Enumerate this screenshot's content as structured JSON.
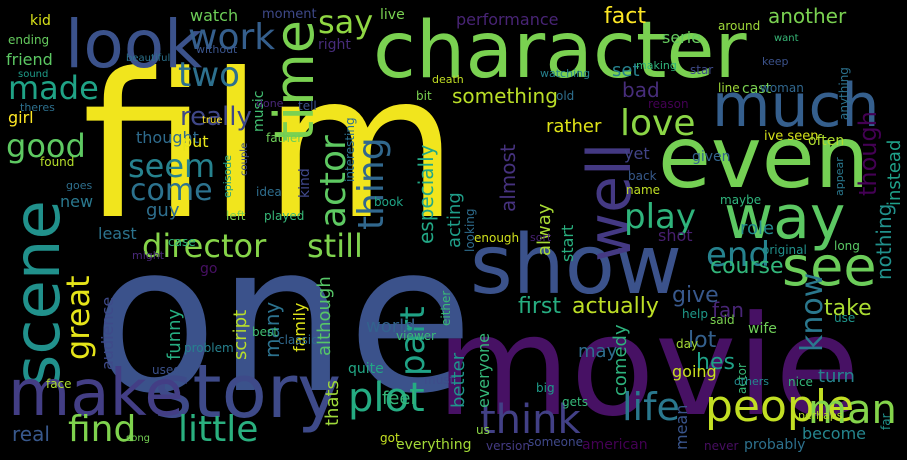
{
  "words": [
    {
      "t": "film",
      "c": "#f1e51d"
    },
    {
      "t": "one",
      "c": "#3b528b"
    },
    {
      "t": "movie",
      "c": "#471164"
    },
    {
      "t": "character",
      "c": "#7ad151"
    },
    {
      "t": "even",
      "c": "#75d054"
    },
    {
      "t": "show",
      "c": "#3b528b"
    },
    {
      "t": "scene",
      "c": "#21918c"
    },
    {
      "t": "story",
      "c": "#3e4a89"
    },
    {
      "t": "make",
      "c": "#433e85"
    },
    {
      "t": "look",
      "c": "#3b528b"
    },
    {
      "t": "time",
      "c": "#7ad151"
    },
    {
      "t": "much",
      "c": "#355f8d"
    },
    {
      "t": "way",
      "c": "#5cc863"
    },
    {
      "t": "see",
      "c": "#6ccd5a"
    },
    {
      "t": "well",
      "c": "#443983"
    },
    {
      "t": "director",
      "c": "#86d549"
    },
    {
      "t": "still",
      "c": "#7fd34e"
    },
    {
      "t": "people",
      "c": "#c2df23"
    },
    {
      "t": "life",
      "c": "#2a788e"
    },
    {
      "t": "plot",
      "c": "#25ac82"
    },
    {
      "t": "think",
      "c": "#424086"
    },
    {
      "t": "little",
      "c": "#2ab07f"
    },
    {
      "t": "find",
      "c": "#7fd34e"
    },
    {
      "t": "man",
      "c": "#84d44b"
    },
    {
      "t": "good",
      "c": "#5ec962"
    },
    {
      "t": "made",
      "c": "#20a386"
    },
    {
      "t": "great",
      "c": "#e5e419"
    },
    {
      "t": "seem",
      "c": "#26828e"
    },
    {
      "t": "come",
      "c": "#2c728e"
    },
    {
      "t": "work",
      "c": "#355f8d"
    },
    {
      "t": "two",
      "c": "#2d708e"
    },
    {
      "t": "say",
      "c": "#90d743"
    },
    {
      "t": "actor",
      "c": "#5ec962"
    },
    {
      "t": "thing",
      "c": "#31688e"
    },
    {
      "t": "part",
      "c": "#20a386"
    },
    {
      "t": "love",
      "c": "#8bd646"
    },
    {
      "t": "play",
      "c": "#2fb47c"
    },
    {
      "t": "end",
      "c": "#26828e"
    },
    {
      "t": "know",
      "c": "#2a788e"
    },
    {
      "t": "really",
      "c": "#3f4788"
    },
    {
      "t": "watch",
      "c": "#6ece58"
    },
    {
      "t": "fact",
      "c": "#fde725"
    },
    {
      "t": "another",
      "c": "#7ad151"
    },
    {
      "t": "though",
      "c": "#440154"
    },
    {
      "t": "instead",
      "c": "#1fa088"
    },
    {
      "t": "nothing",
      "c": "#21918c"
    },
    {
      "t": "first",
      "c": "#27ad81"
    },
    {
      "t": "actually",
      "c": "#bddf26"
    },
    {
      "t": "give",
      "c": "#38588c"
    },
    {
      "t": "take",
      "c": "#aadc32"
    },
    {
      "t": "fan",
      "c": "#482576"
    },
    {
      "t": "lot",
      "c": "#34608d"
    },
    {
      "t": "hes",
      "c": "#1fa187"
    },
    {
      "t": "role",
      "c": "#23898e"
    },
    {
      "t": "course",
      "c": "#32b67a"
    },
    {
      "t": "shot",
      "c": "#481f70"
    },
    {
      "t": "going",
      "c": "#cae11f"
    },
    {
      "t": "may",
      "c": "#2e6e8e"
    },
    {
      "t": "comedy",
      "c": "#2db27d"
    },
    {
      "t": "turn",
      "c": "#26828e"
    },
    {
      "t": "become",
      "c": "#25858e"
    },
    {
      "t": "mean",
      "c": "#39558c"
    },
    {
      "t": "world",
      "c": "#33628d"
    },
    {
      "t": "many",
      "c": "#2c728e"
    },
    {
      "t": "family",
      "c": "#dde318"
    },
    {
      "t": "funny",
      "c": "#26ad81"
    },
    {
      "t": "script",
      "c": "#b8de29"
    },
    {
      "t": "audience",
      "c": "#3e4a89"
    },
    {
      "t": "although",
      "c": "#56c667"
    },
    {
      "t": "feel",
      "c": "#35b779"
    },
    {
      "t": "thats",
      "c": "#9fda3a"
    },
    {
      "t": "real",
      "c": "#38588c"
    },
    {
      "t": "better",
      "c": "#1f968b"
    },
    {
      "t": "everyone",
      "c": "#35b779"
    },
    {
      "t": "acting",
      "c": "#1f9e89"
    },
    {
      "t": "especially",
      "c": "#22a785"
    },
    {
      "t": "almost",
      "c": "#46327e"
    },
    {
      "t": "alway",
      "c": "#a8db34"
    },
    {
      "t": "start",
      "c": "#29af7f"
    },
    {
      "t": "something",
      "c": "#bade28"
    },
    {
      "t": "rather",
      "c": "#dfe318"
    },
    {
      "t": "set",
      "c": "#26828e"
    },
    {
      "t": "bad",
      "c": "#472d7b"
    },
    {
      "t": "yet",
      "c": "#414487"
    },
    {
      "t": "serie",
      "c": "#65cb5e"
    },
    {
      "t": "performance",
      "c": "#482475"
    },
    {
      "t": "right",
      "c": "#472c7a"
    },
    {
      "t": "live",
      "c": "#7ad151"
    },
    {
      "t": "moment",
      "c": "#3e4989"
    },
    {
      "t": "music",
      "c": "#42be71"
    },
    {
      "t": "thought",
      "c": "#2f6c8e"
    },
    {
      "t": "put",
      "c": "#e7e419"
    },
    {
      "t": "guy",
      "c": "#2e6f8e"
    },
    {
      "t": "kind",
      "c": "#3f4889"
    },
    {
      "t": "new",
      "c": "#2a788e"
    },
    {
      "t": "least",
      "c": "#2c738e"
    },
    {
      "t": "girl",
      "c": "#fde725"
    },
    {
      "t": "friend",
      "c": "#5cc863"
    },
    {
      "t": "kid",
      "c": "#d8e219"
    },
    {
      "t": "go",
      "c": "#471063"
    },
    {
      "t": "cast",
      "c": "#7ad151"
    },
    {
      "t": "line",
      "c": "#a0da39"
    },
    {
      "t": "ive seen",
      "c": "#d5e21a"
    },
    {
      "t": "given",
      "c": "#33638d"
    },
    {
      "t": "often",
      "c": "#b0dd2f"
    },
    {
      "t": "woman",
      "c": "#31678e"
    },
    {
      "t": "reason",
      "c": "#440154"
    },
    {
      "t": "original",
      "c": "#21918c"
    },
    {
      "t": "maybe",
      "c": "#2fb47c"
    },
    {
      "t": "long",
      "c": "#5ac864"
    },
    {
      "t": "use",
      "c": "#1f958b"
    },
    {
      "t": "said",
      "c": "#7ad151"
    },
    {
      "t": "help",
      "c": "#1f9a8a"
    },
    {
      "t": "wife",
      "c": "#6ece58"
    },
    {
      "t": "day",
      "c": "#a5db36"
    },
    {
      "t": "actor",
      "c": "#37b878"
    },
    {
      "t": "nice",
      "c": "#34b679"
    },
    {
      "t": "others",
      "c": "#23898e"
    },
    {
      "t": "perhaps",
      "c": "#b5de2b"
    },
    {
      "t": "probably",
      "c": "#2d718e"
    },
    {
      "t": "never",
      "c": "#470e61"
    },
    {
      "t": "american",
      "c": "#440154"
    },
    {
      "t": "someone",
      "c": "#3f4889"
    },
    {
      "t": "version",
      "c": "#443b84"
    },
    {
      "t": "us",
      "c": "#8bd646"
    },
    {
      "t": "everything",
      "c": "#a2da37"
    },
    {
      "t": "got",
      "c": "#c5e021"
    },
    {
      "t": "big",
      "c": "#1e9c89"
    },
    {
      "t": "gets",
      "c": "#35b779"
    },
    {
      "t": "must",
      "c": "#3e4c8a"
    },
    {
      "t": "quite",
      "c": "#22a785"
    },
    {
      "t": "used",
      "c": "#3b528b"
    },
    {
      "t": "classic",
      "c": "#30698e"
    },
    {
      "t": "problem",
      "c": "#26818e"
    },
    {
      "t": "best",
      "c": "#40bd72"
    },
    {
      "t": "face",
      "c": "#addc30"
    },
    {
      "t": "song",
      "c": "#75d054"
    },
    {
      "t": "viewer",
      "c": "#39b977"
    },
    {
      "t": "either",
      "c": "#38b977"
    },
    {
      "t": "played",
      "c": "#37b878"
    },
    {
      "t": "book",
      "c": "#20a486"
    },
    {
      "t": "case",
      "c": "#2fb47c"
    },
    {
      "t": "left",
      "c": "#7ad151"
    },
    {
      "t": "idea",
      "c": "#2e6e8e"
    },
    {
      "t": "might",
      "c": "#482878"
    },
    {
      "t": "looking",
      "c": "#2e6d8e"
    },
    {
      "t": "enough",
      "c": "#d0e11c"
    },
    {
      "t": "sort",
      "c": "#482173"
    },
    {
      "t": "name",
      "c": "#c0df25"
    },
    {
      "t": "back",
      "c": "#375a8c"
    },
    {
      "t": "father",
      "c": "#6ece58"
    },
    {
      "t": "tell",
      "c": "#3b528b"
    },
    {
      "t": "done",
      "c": "#482677"
    },
    {
      "t": "true",
      "c": "#fde725"
    },
    {
      "t": "without",
      "c": "#3a548c"
    },
    {
      "t": "beautiful",
      "c": "#2c738e"
    },
    {
      "t": "ending",
      "c": "#65cb5e"
    },
    {
      "t": "sound",
      "c": "#1e9c89"
    },
    {
      "t": "theres",
      "c": "#2d708e"
    },
    {
      "t": "found",
      "c": "#b5de2b"
    },
    {
      "t": "goes",
      "c": "#2e6f8e"
    },
    {
      "t": "episode",
      "c": "#1f9f88"
    },
    {
      "t": "couple",
      "c": "#3e4c8a"
    },
    {
      "t": "interesting",
      "c": "#2d708e"
    },
    {
      "t": "old",
      "c": "#2e6f8e"
    },
    {
      "t": "bit",
      "c": "#7ad151"
    },
    {
      "t": "death",
      "c": "#c2df23"
    },
    {
      "t": "watching",
      "c": "#26828e"
    },
    {
      "t": "making",
      "c": "#2fb47c"
    },
    {
      "t": "star",
      "c": "#3e4a89"
    },
    {
      "t": "keep",
      "c": "#3b528b"
    },
    {
      "t": "around",
      "c": "#9fda3a"
    },
    {
      "t": "want",
      "c": "#37b878"
    },
    {
      "t": "anything",
      "c": "#2c728e"
    },
    {
      "t": "appear",
      "c": "#2a788e"
    },
    {
      "t": "far",
      "c": "#21918c"
    }
  ]
}
